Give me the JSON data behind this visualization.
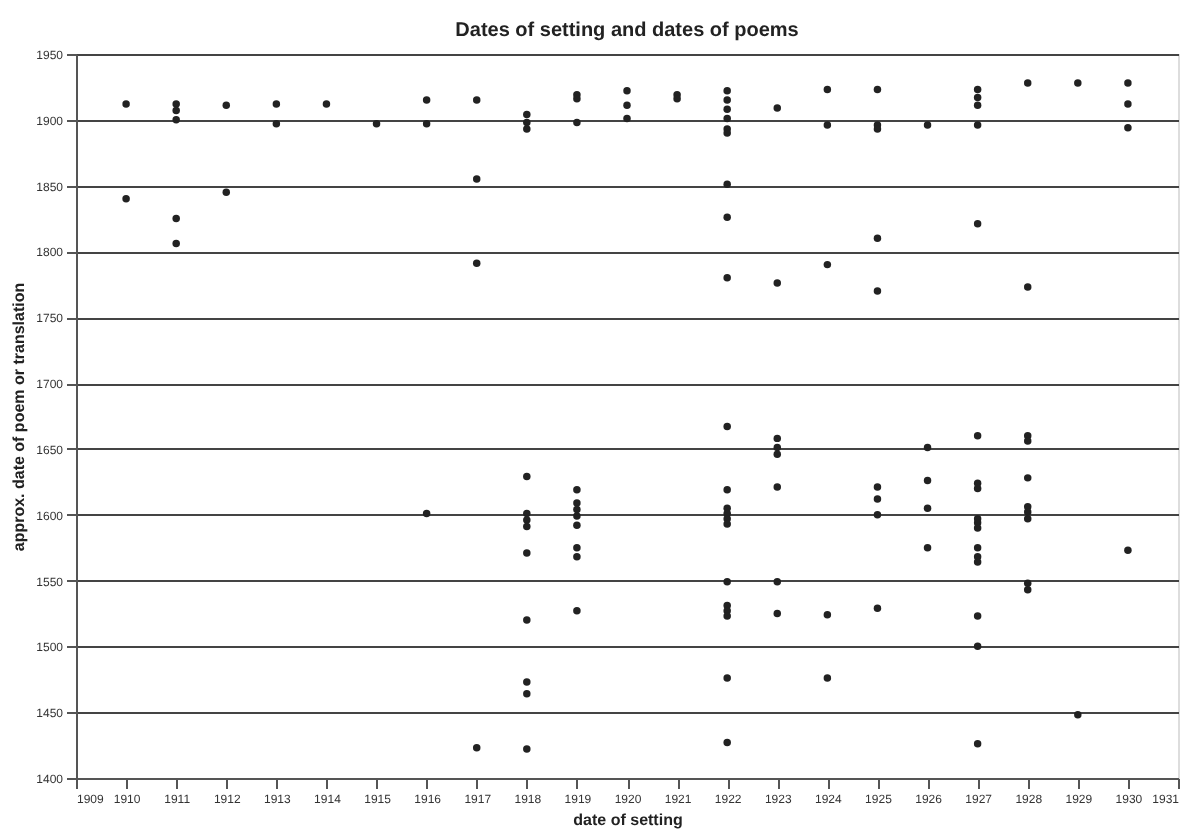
{
  "chart_data": {
    "type": "scatter",
    "title": "Dates of setting and dates of poems",
    "xlabel": "date of setting",
    "ylabel": "approx. date of poem or translation",
    "xlim": [
      1909,
      1931
    ],
    "xticks": [
      1909,
      1910,
      1911,
      1912,
      1913,
      1914,
      1915,
      1916,
      1917,
      1918,
      1919,
      1920,
      1921,
      1922,
      1923,
      1924,
      1925,
      1926,
      1927,
      1928,
      1929,
      1930,
      1931
    ],
    "ylim": [
      1400,
      1950
    ],
    "yticks": [
      1400,
      1450,
      1500,
      1550,
      1600,
      1650,
      1700,
      1750,
      1800,
      1850,
      1900,
      1950
    ],
    "grid": "y",
    "marker": "circle",
    "series": [
      {
        "color": "#222222",
        "x": [
          1910,
          1910,
          1911,
          1911,
          1911,
          1911,
          1911,
          1912,
          1912,
          1913,
          1913,
          1914,
          1915,
          1916,
          1916,
          1916,
          1917,
          1917,
          1917,
          1917,
          1918,
          1918,
          1918,
          1918,
          1918,
          1918,
          1918,
          1918,
          1918,
          1918,
          1918,
          1918,
          1919,
          1919,
          1919,
          1919,
          1919,
          1919,
          1919,
          1919,
          1919,
          1919,
          1919,
          1920,
          1920,
          1920,
          1921,
          1921,
          1922,
          1922,
          1922,
          1922,
          1922,
          1922,
          1922,
          1922,
          1922,
          1922,
          1922,
          1922,
          1922,
          1922,
          1922,
          1922,
          1922,
          1922,
          1922,
          1922,
          1922,
          1923,
          1923,
          1923,
          1923,
          1923,
          1923,
          1923,
          1923,
          1924,
          1924,
          1924,
          1924,
          1924,
          1925,
          1925,
          1925,
          1925,
          1925,
          1925,
          1925,
          1925,
          1925,
          1926,
          1926,
          1926,
          1926,
          1926,
          1927,
          1927,
          1927,
          1927,
          1927,
          1927,
          1927,
          1927,
          1927,
          1927,
          1927,
          1927,
          1927,
          1927,
          1927,
          1927,
          1927,
          1928,
          1928,
          1928,
          1928,
          1928,
          1928,
          1928,
          1928,
          1928,
          1928,
          1929,
          1929,
          1930,
          1930,
          1930,
          1930
        ],
        "values": [
          1912,
          1840,
          1912,
          1907,
          1900,
          1825,
          1806,
          1911,
          1845,
          1912,
          1897,
          1912,
          1897,
          1915,
          1897,
          1601,
          1915,
          1855,
          1791,
          1423,
          1904,
          1898,
          1893,
          1629,
          1601,
          1596,
          1591,
          1571,
          1520,
          1473,
          1464,
          1422,
          1919,
          1916,
          1898,
          1619,
          1609,
          1604,
          1599,
          1592,
          1575,
          1568,
          1527,
          1922,
          1911,
          1901,
          1919,
          1916,
          1922,
          1915,
          1908,
          1901,
          1893,
          1890,
          1851,
          1826,
          1780,
          1667,
          1619,
          1605,
          1601,
          1597,
          1593,
          1549,
          1531,
          1527,
          1523,
          1476,
          1427,
          1909,
          1776,
          1658,
          1651,
          1646,
          1621,
          1549,
          1525,
          1923,
          1896,
          1790,
          1524,
          1476,
          1923,
          1896,
          1893,
          1810,
          1770,
          1621,
          1612,
          1600,
          1529,
          1896,
          1651,
          1626,
          1605,
          1575,
          1923,
          1917,
          1911,
          1896,
          1821,
          1660,
          1624,
          1620,
          1597,
          1594,
          1590,
          1575,
          1568,
          1564,
          1523,
          1500,
          1426,
          1928,
          1773,
          1660,
          1656,
          1628,
          1606,
          1602,
          1597,
          1548,
          1543,
          1928,
          1448,
          1928,
          1912,
          1894,
          1573
        ]
      }
    ]
  }
}
